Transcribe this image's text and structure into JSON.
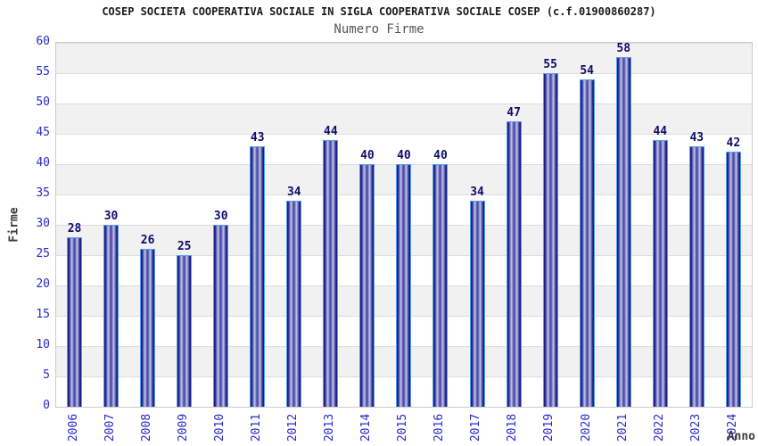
{
  "chart_data": {
    "type": "bar",
    "title": "COSEP SOCIETA COOPERATIVA SOCIALE IN SIGLA COOPERATIVA SOCIALE COSEP (c.f.01900860287)",
    "subtitle": "Numero Firme",
    "xlabel": "Anno",
    "ylabel": "Firme",
    "categories": [
      "2006",
      "2007",
      "2008",
      "2009",
      "2010",
      "2011",
      "2012",
      "2013",
      "2014",
      "2015",
      "2016",
      "2017",
      "2018",
      "2019",
      "2020",
      "2021",
      "2022",
      "2023",
      "2024"
    ],
    "values": [
      28,
      30,
      26,
      25,
      30,
      43,
      34,
      44,
      40,
      40,
      40,
      34,
      47,
      55,
      54,
      58,
      44,
      43,
      42
    ],
    "ylim": [
      0,
      60
    ],
    "ytick_step": 5,
    "ytick_labels": [
      "0",
      "5",
      "10",
      "15",
      "20",
      "25",
      "30",
      "35",
      "40",
      "45",
      "50",
      "55",
      "60"
    ],
    "grid": "alternating horizontal bands, gray band between each odd 5-unit interval from top",
    "legend": "none",
    "colors": {
      "bar_dark": "#16167c",
      "bar_mid2": "#2a2a8e",
      "bar_mid": "#3c3c9e",
      "bar_light": "#c2c6ec",
      "bar_outline": "#55a0f0",
      "tick_label": "#2929cc",
      "value_label": "#0d0d6b",
      "band_gray": "#f1f1f1",
      "grid_line": "#dddddd",
      "plot_border": "#cccccc",
      "title_color": "#1a1a1a",
      "subtitle_color": "#555555",
      "axis_title_color": "#3c3c3c"
    }
  }
}
